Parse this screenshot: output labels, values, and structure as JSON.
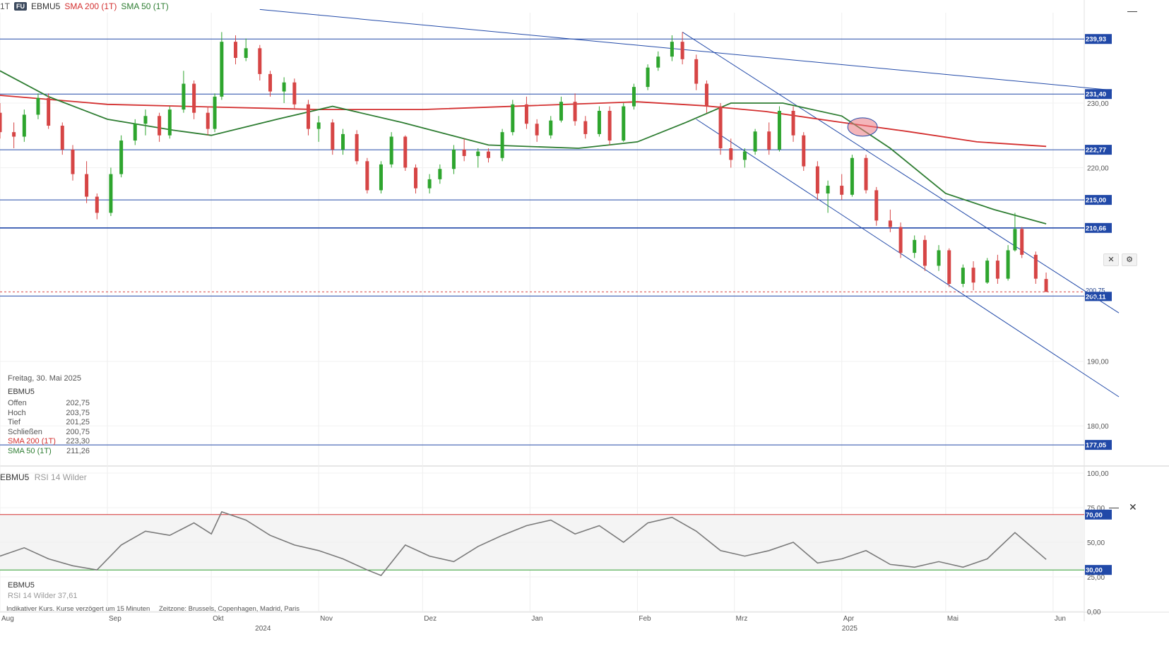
{
  "header": {
    "period": "1T",
    "badge": "FU",
    "symbol": "EBMU5",
    "sma200_label": "SMA 200 (1T)",
    "sma50_label": "SMA 50 (1T)",
    "minimize_glyph": "—"
  },
  "price_panel": {
    "y_ticks": [
      "230,00",
      "220,00",
      "190,00",
      "180,00"
    ],
    "levels": [
      {
        "value": 239.93,
        "label": "239,93"
      },
      {
        "value": 231.4,
        "label": "231,40"
      },
      {
        "value": 222.77,
        "label": "222,77"
      },
      {
        "value": 215.0,
        "label": "215,00"
      },
      {
        "value": 210.66,
        "label": "210,66"
      },
      {
        "value": 200.11,
        "label": "200,11"
      },
      {
        "value": 177.05,
        "label": "177,05"
      }
    ],
    "last_price": {
      "value": 200.75,
      "label": "200,75"
    },
    "line_colors": {
      "levels": "#2149a8",
      "sma200": "#d32f2f",
      "sma50": "#2e7d32",
      "up": "#2ea52e",
      "down": "#d64545"
    },
    "close_glyph": "✕",
    "settings_glyph": "⚙",
    "info": {
      "date": "Freitag, 30. Mai 2025",
      "symbol": "EBMU5",
      "rows": [
        {
          "label": "Offen",
          "value": "202,75"
        },
        {
          "label": "Hoch",
          "value": "203,75"
        },
        {
          "label": "Tief",
          "value": "201,25"
        },
        {
          "label": "Schließen",
          "value": "200,75"
        },
        {
          "label": "SMA 200 (1T)",
          "value": "223,30"
        },
        {
          "label": "SMA 50 (1T)",
          "value": "211,26"
        }
      ]
    }
  },
  "rsi_panel": {
    "symbol": "EBMU5",
    "indicator": "RSI 14 Wilder",
    "y_ticks": [
      "100,00",
      "75,00",
      "50,00",
      "25,00",
      "0,00"
    ],
    "upper_band": {
      "value": 70,
      "label": "70,00"
    },
    "lower_band": {
      "value": 30,
      "label": "30,00"
    },
    "info_symbol": "EBMU5",
    "info_value": "RSI 14 Wilder 37,61",
    "minimize_glyph": "—",
    "close_glyph": "✕"
  },
  "x_axis": {
    "months": [
      "Aug",
      "Sep",
      "Okt",
      "Nov",
      "Dez",
      "Jan",
      "Feb",
      "Mrz",
      "Apr",
      "Mai",
      "Jun"
    ],
    "years": [
      "2024",
      "2025"
    ]
  },
  "footer": {
    "note": "Indikativer Kurs. Kurse verzögert um 15 Minuten",
    "timezone": "Zeitzone: Brussels, Copenhagen, Madrid, Paris"
  },
  "chart_data": [
    {
      "type": "candlestick",
      "title": "EBMU5",
      "ylim": [
        174,
        244
      ],
      "x_start": "2024-08-01",
      "x_end": "2025-06-10",
      "horizontal_levels": [
        239.93,
        231.4,
        222.77,
        215.0,
        210.66,
        200.11,
        177.05
      ],
      "last_close": 200.75,
      "sma200_points": [
        [
          "2024-08-01",
          231.2
        ],
        [
          "2024-09-01",
          229.8
        ],
        [
          "2024-10-01",
          229.4
        ],
        [
          "2024-11-01",
          229.0
        ],
        [
          "2024-12-01",
          229.0
        ],
        [
          "2025-01-01",
          229.6
        ],
        [
          "2025-02-01",
          230.2
        ],
        [
          "2025-02-20",
          229.6
        ],
        [
          "2025-03-10",
          228.7
        ],
        [
          "2025-04-01",
          227.0
        ],
        [
          "2025-04-20",
          225.6
        ],
        [
          "2025-05-10",
          224.0
        ],
        [
          "2025-05-30",
          223.3
        ]
      ],
      "sma50_points": [
        [
          "2024-08-01",
          235.0
        ],
        [
          "2024-08-15",
          231.0
        ],
        [
          "2024-09-01",
          227.5
        ],
        [
          "2024-09-20",
          225.8
        ],
        [
          "2024-10-01",
          225.0
        ],
        [
          "2024-10-20",
          227.5
        ],
        [
          "2024-11-05",
          229.5
        ],
        [
          "2024-11-25",
          227.0
        ],
        [
          "2024-12-20",
          223.5
        ],
        [
          "2025-01-15",
          223.0
        ],
        [
          "2025-02-01",
          224.0
        ],
        [
          "2025-02-15",
          227.0
        ],
        [
          "2025-02-28",
          230.0
        ],
        [
          "2025-03-15",
          230.0
        ],
        [
          "2025-04-01",
          228.0
        ],
        [
          "2025-04-15",
          223.0
        ],
        [
          "2025-05-01",
          216.0
        ],
        [
          "2025-05-15",
          213.5
        ],
        [
          "2025-05-30",
          211.3
        ]
      ],
      "ohlc": [
        [
          "2024-08-01",
          228.5,
          230.0,
          224.5,
          225.5
        ],
        [
          "2024-08-05",
          225.5,
          227.0,
          223.0,
          224.8
        ],
        [
          "2024-08-08",
          224.8,
          229.0,
          224.0,
          228.2
        ],
        [
          "2024-08-12",
          228.2,
          231.5,
          227.5,
          230.8
        ],
        [
          "2024-08-15",
          230.8,
          231.5,
          226.0,
          226.5
        ],
        [
          "2024-08-19",
          226.5,
          227.0,
          222.0,
          222.8
        ],
        [
          "2024-08-22",
          222.8,
          223.5,
          218.0,
          219.0
        ],
        [
          "2024-08-26",
          219.0,
          221.0,
          214.5,
          215.5
        ],
        [
          "2024-08-29",
          215.5,
          216.0,
          212.0,
          213.0
        ],
        [
          "2024-09-02",
          213.0,
          220.0,
          212.5,
          219.0
        ],
        [
          "2024-09-05",
          219.0,
          225.0,
          218.5,
          224.2
        ],
        [
          "2024-09-09",
          224.2,
          227.5,
          223.5,
          226.8
        ],
        [
          "2024-09-12",
          226.8,
          229.0,
          225.0,
          228.0
        ],
        [
          "2024-09-16",
          228.0,
          228.5,
          224.0,
          225.0
        ],
        [
          "2024-09-19",
          225.0,
          229.5,
          224.5,
          229.0
        ],
        [
          "2024-09-23",
          229.0,
          235.0,
          228.5,
          233.0
        ],
        [
          "2024-09-26",
          233.0,
          233.5,
          227.5,
          228.5
        ],
        [
          "2024-09-30",
          228.5,
          229.5,
          225.0,
          226.0
        ],
        [
          "2024-10-02",
          226.0,
          231.5,
          225.5,
          231.0
        ],
        [
          "2024-10-04",
          231.0,
          241.0,
          230.5,
          239.5
        ],
        [
          "2024-10-08",
          239.5,
          240.5,
          236.0,
          237.0
        ],
        [
          "2024-10-11",
          237.0,
          240.0,
          236.5,
          238.5
        ],
        [
          "2024-10-15",
          238.5,
          239.0,
          233.5,
          234.5
        ],
        [
          "2024-10-18",
          234.5,
          235.0,
          231.0,
          231.8
        ],
        [
          "2024-10-22",
          231.8,
          234.0,
          230.0,
          233.2
        ],
        [
          "2024-10-25",
          233.2,
          233.8,
          229.0,
          229.8
        ],
        [
          "2024-10-29",
          229.8,
          230.5,
          225.0,
          226.0
        ],
        [
          "2024-11-01",
          226.0,
          228.0,
          224.0,
          227.0
        ],
        [
          "2024-11-05",
          227.0,
          227.5,
          222.0,
          222.8
        ],
        [
          "2024-11-08",
          222.8,
          226.0,
          222.0,
          225.2
        ],
        [
          "2024-11-12",
          225.2,
          225.8,
          220.5,
          221.0
        ],
        [
          "2024-11-15",
          221.0,
          221.5,
          216.0,
          216.5
        ],
        [
          "2024-11-19",
          216.5,
          221.0,
          216.0,
          220.5
        ],
        [
          "2024-11-22",
          220.5,
          225.5,
          220.0,
          224.8
        ],
        [
          "2024-11-26",
          224.8,
          225.0,
          219.5,
          220.0
        ],
        [
          "2024-11-29",
          220.0,
          220.5,
          216.0,
          216.8
        ],
        [
          "2024-12-03",
          216.8,
          219.0,
          216.0,
          218.2
        ],
        [
          "2024-12-06",
          218.2,
          220.5,
          217.5,
          219.8
        ],
        [
          "2024-12-10",
          219.8,
          223.5,
          219.0,
          222.8
        ],
        [
          "2024-12-13",
          222.8,
          224.5,
          221.0,
          221.8
        ],
        [
          "2024-12-17",
          221.8,
          223.0,
          220.0,
          222.5
        ],
        [
          "2024-12-20",
          222.5,
          223.0,
          220.8,
          221.5
        ],
        [
          "2024-12-24",
          221.5,
          226.0,
          221.0,
          225.5
        ],
        [
          "2024-12-27",
          225.5,
          230.5,
          225.0,
          229.8
        ],
        [
          "2024-12-31",
          229.8,
          231.0,
          226.0,
          226.8
        ],
        [
          "2025-01-03",
          226.8,
          227.5,
          224.0,
          225.0
        ],
        [
          "2025-01-07",
          225.0,
          228.0,
          224.5,
          227.3
        ],
        [
          "2025-01-10",
          227.3,
          231.0,
          227.0,
          230.2
        ],
        [
          "2025-01-14",
          230.2,
          231.5,
          226.5,
          227.2
        ],
        [
          "2025-01-17",
          227.2,
          228.0,
          224.5,
          225.2
        ],
        [
          "2025-01-21",
          225.2,
          229.5,
          224.8,
          228.8
        ],
        [
          "2025-01-24",
          228.8,
          229.5,
          223.5,
          224.2
        ],
        [
          "2025-01-28",
          224.2,
          230.0,
          224.0,
          229.5
        ],
        [
          "2025-01-31",
          229.5,
          233.0,
          229.0,
          232.5
        ],
        [
          "2025-02-04",
          232.5,
          236.0,
          232.0,
          235.5
        ],
        [
          "2025-02-07",
          235.5,
          238.0,
          235.0,
          237.2
        ],
        [
          "2025-02-11",
          237.2,
          240.5,
          236.5,
          239.5
        ],
        [
          "2025-02-14",
          239.5,
          241.0,
          236.0,
          236.8
        ],
        [
          "2025-02-18",
          236.8,
          237.5,
          232.0,
          233.0
        ],
        [
          "2025-02-21",
          233.0,
          233.5,
          228.5,
          229.5
        ],
        [
          "2025-02-25",
          229.5,
          230.0,
          222.0,
          223.0
        ],
        [
          "2025-02-28",
          223.0,
          224.5,
          220.0,
          221.2
        ],
        [
          "2025-03-04",
          221.2,
          223.0,
          220.0,
          222.5
        ],
        [
          "2025-03-07",
          222.5,
          226.0,
          222.0,
          225.6
        ],
        [
          "2025-03-11",
          225.6,
          227.0,
          222.0,
          222.8
        ],
        [
          "2025-03-14",
          222.8,
          229.5,
          222.5,
          228.8
        ],
        [
          "2025-03-18",
          228.8,
          229.5,
          224.0,
          225.0
        ],
        [
          "2025-03-21",
          225.0,
          225.5,
          219.5,
          220.2
        ],
        [
          "2025-03-25",
          220.2,
          221.0,
          215.0,
          216.0
        ],
        [
          "2025-03-28",
          216.0,
          218.0,
          213.0,
          217.2
        ],
        [
          "2025-04-01",
          217.2,
          219.0,
          215.0,
          215.8
        ],
        [
          "2025-04-04",
          215.8,
          222.0,
          215.5,
          221.5
        ],
        [
          "2025-04-08",
          221.5,
          222.0,
          216.0,
          216.5
        ],
        [
          "2025-04-11",
          216.5,
          217.0,
          211.0,
          211.8
        ],
        [
          "2025-04-15",
          211.8,
          213.5,
          210.0,
          210.8
        ],
        [
          "2025-04-18",
          210.8,
          211.5,
          206.0,
          206.8
        ],
        [
          "2025-04-22",
          206.8,
          209.5,
          206.0,
          208.8
        ],
        [
          "2025-04-25",
          208.8,
          209.5,
          204.0,
          204.8
        ],
        [
          "2025-04-29",
          204.8,
          208.0,
          204.0,
          207.2
        ],
        [
          "2025-05-02",
          207.2,
          207.5,
          201.5,
          202.0
        ],
        [
          "2025-05-06",
          202.0,
          205.0,
          201.5,
          204.5
        ],
        [
          "2025-05-09",
          204.5,
          205.5,
          201.0,
          202.2
        ],
        [
          "2025-05-13",
          202.2,
          206.0,
          202.0,
          205.6
        ],
        [
          "2025-05-16",
          205.6,
          206.5,
          202.0,
          202.8
        ],
        [
          "2025-05-19",
          202.8,
          208.0,
          202.5,
          207.2
        ],
        [
          "2025-05-21",
          207.2,
          213.0,
          207.0,
          210.5
        ],
        [
          "2025-05-23",
          210.5,
          210.8,
          206.0,
          206.5
        ],
        [
          "2025-05-27",
          206.5,
          207.0,
          202.0,
          202.8
        ],
        [
          "2025-05-30",
          202.75,
          203.75,
          201.25,
          200.75
        ]
      ]
    },
    {
      "type": "line",
      "title": "RSI 14 Wilder",
      "ylim": [
        0,
        100
      ],
      "bands": [
        70,
        30
      ],
      "last_value": 37.61,
      "points": [
        [
          "2024-08-01",
          40
        ],
        [
          "2024-08-08",
          46
        ],
        [
          "2024-08-15",
          38
        ],
        [
          "2024-08-22",
          33
        ],
        [
          "2024-08-29",
          30
        ],
        [
          "2024-09-05",
          48
        ],
        [
          "2024-09-12",
          58
        ],
        [
          "2024-09-19",
          55
        ],
        [
          "2024-09-26",
          64
        ],
        [
          "2024-10-01",
          56
        ],
        [
          "2024-10-04",
          72
        ],
        [
          "2024-10-11",
          66
        ],
        [
          "2024-10-18",
          55
        ],
        [
          "2024-10-25",
          48
        ],
        [
          "2024-11-01",
          44
        ],
        [
          "2024-11-08",
          38
        ],
        [
          "2024-11-15",
          30
        ],
        [
          "2024-11-19",
          26
        ],
        [
          "2024-11-26",
          48
        ],
        [
          "2024-12-03",
          40
        ],
        [
          "2024-12-10",
          36
        ],
        [
          "2024-12-17",
          47
        ],
        [
          "2024-12-24",
          55
        ],
        [
          "2024-12-31",
          62
        ],
        [
          "2025-01-07",
          66
        ],
        [
          "2025-01-14",
          56
        ],
        [
          "2025-01-21",
          62
        ],
        [
          "2025-01-28",
          50
        ],
        [
          "2025-02-04",
          64
        ],
        [
          "2025-02-11",
          68
        ],
        [
          "2025-02-18",
          58
        ],
        [
          "2025-02-25",
          44
        ],
        [
          "2025-03-04",
          40
        ],
        [
          "2025-03-11",
          44
        ],
        [
          "2025-03-18",
          50
        ],
        [
          "2025-03-25",
          35
        ],
        [
          "2025-04-01",
          38
        ],
        [
          "2025-04-08",
          44
        ],
        [
          "2025-04-15",
          34
        ],
        [
          "2025-04-22",
          32
        ],
        [
          "2025-04-29",
          36
        ],
        [
          "2025-05-06",
          32
        ],
        [
          "2025-05-13",
          38
        ],
        [
          "2025-05-21",
          57
        ],
        [
          "2025-05-30",
          37.61
        ]
      ]
    }
  ]
}
